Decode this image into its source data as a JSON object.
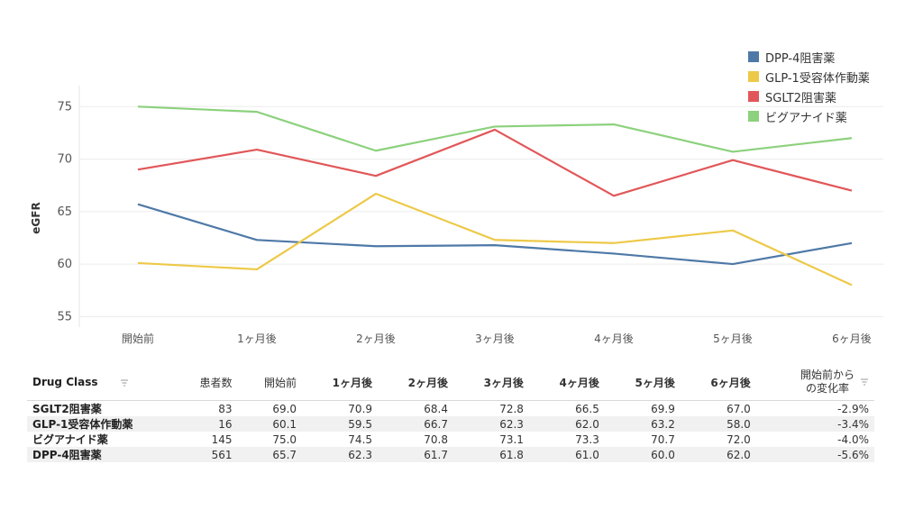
{
  "chart_data": {
    "type": "line",
    "ylabel": "eGFR",
    "ylim": [
      54,
      77
    ],
    "yticks": [
      55,
      60,
      65,
      70,
      75
    ],
    "categories": [
      "開始前",
      "1ヶ月後",
      "2ヶ月後",
      "3ヶ月後",
      "4ヶ月後",
      "5ヶ月後",
      "6ヶ月後"
    ],
    "grid": true,
    "legend_position": "top-right",
    "series": [
      {
        "name": "DPP-4阻害薬",
        "color": "#4e79a7",
        "values": [
          65.7,
          62.3,
          61.7,
          61.8,
          61.0,
          60.0,
          62.0
        ]
      },
      {
        "name": "GLP-1受容体作動薬",
        "color": "#edc948",
        "values": [
          60.1,
          59.5,
          66.7,
          62.3,
          62.0,
          63.2,
          58.0
        ]
      },
      {
        "name": "SGLT2阻害薬",
        "color": "#e15759",
        "values": [
          69.0,
          70.9,
          68.4,
          72.8,
          66.5,
          69.9,
          67.0
        ]
      },
      {
        "name": "ビグアナイド薬",
        "color": "#8cd17d",
        "values": [
          75.0,
          74.5,
          70.8,
          73.1,
          73.3,
          70.7,
          72.0
        ]
      }
    ]
  },
  "table": {
    "headers": [
      "Drug Class",
      "患者数",
      "開始前",
      "1ヶ月後",
      "2ヶ月後",
      "3ヶ月後",
      "4ヶ月後",
      "5ヶ月後",
      "6ヶ月後",
      "開始前から\nの変化率"
    ],
    "rows": [
      [
        "SGLT2阻害薬",
        "83",
        "69.0",
        "70.9",
        "68.4",
        "72.8",
        "66.5",
        "69.9",
        "67.0",
        "-2.9%"
      ],
      [
        "GLP-1受容体作動薬",
        "16",
        "60.1",
        "59.5",
        "66.7",
        "62.3",
        "62.0",
        "63.2",
        "58.0",
        "-3.4%"
      ],
      [
        "ビグアナイド薬",
        "145",
        "75.0",
        "74.5",
        "70.8",
        "73.1",
        "73.3",
        "70.7",
        "72.0",
        "-4.0%"
      ],
      [
        "DPP-4阻害薬",
        "561",
        "65.7",
        "62.3",
        "61.7",
        "61.8",
        "61.0",
        "60.0",
        "62.0",
        "-5.6%"
      ]
    ]
  }
}
